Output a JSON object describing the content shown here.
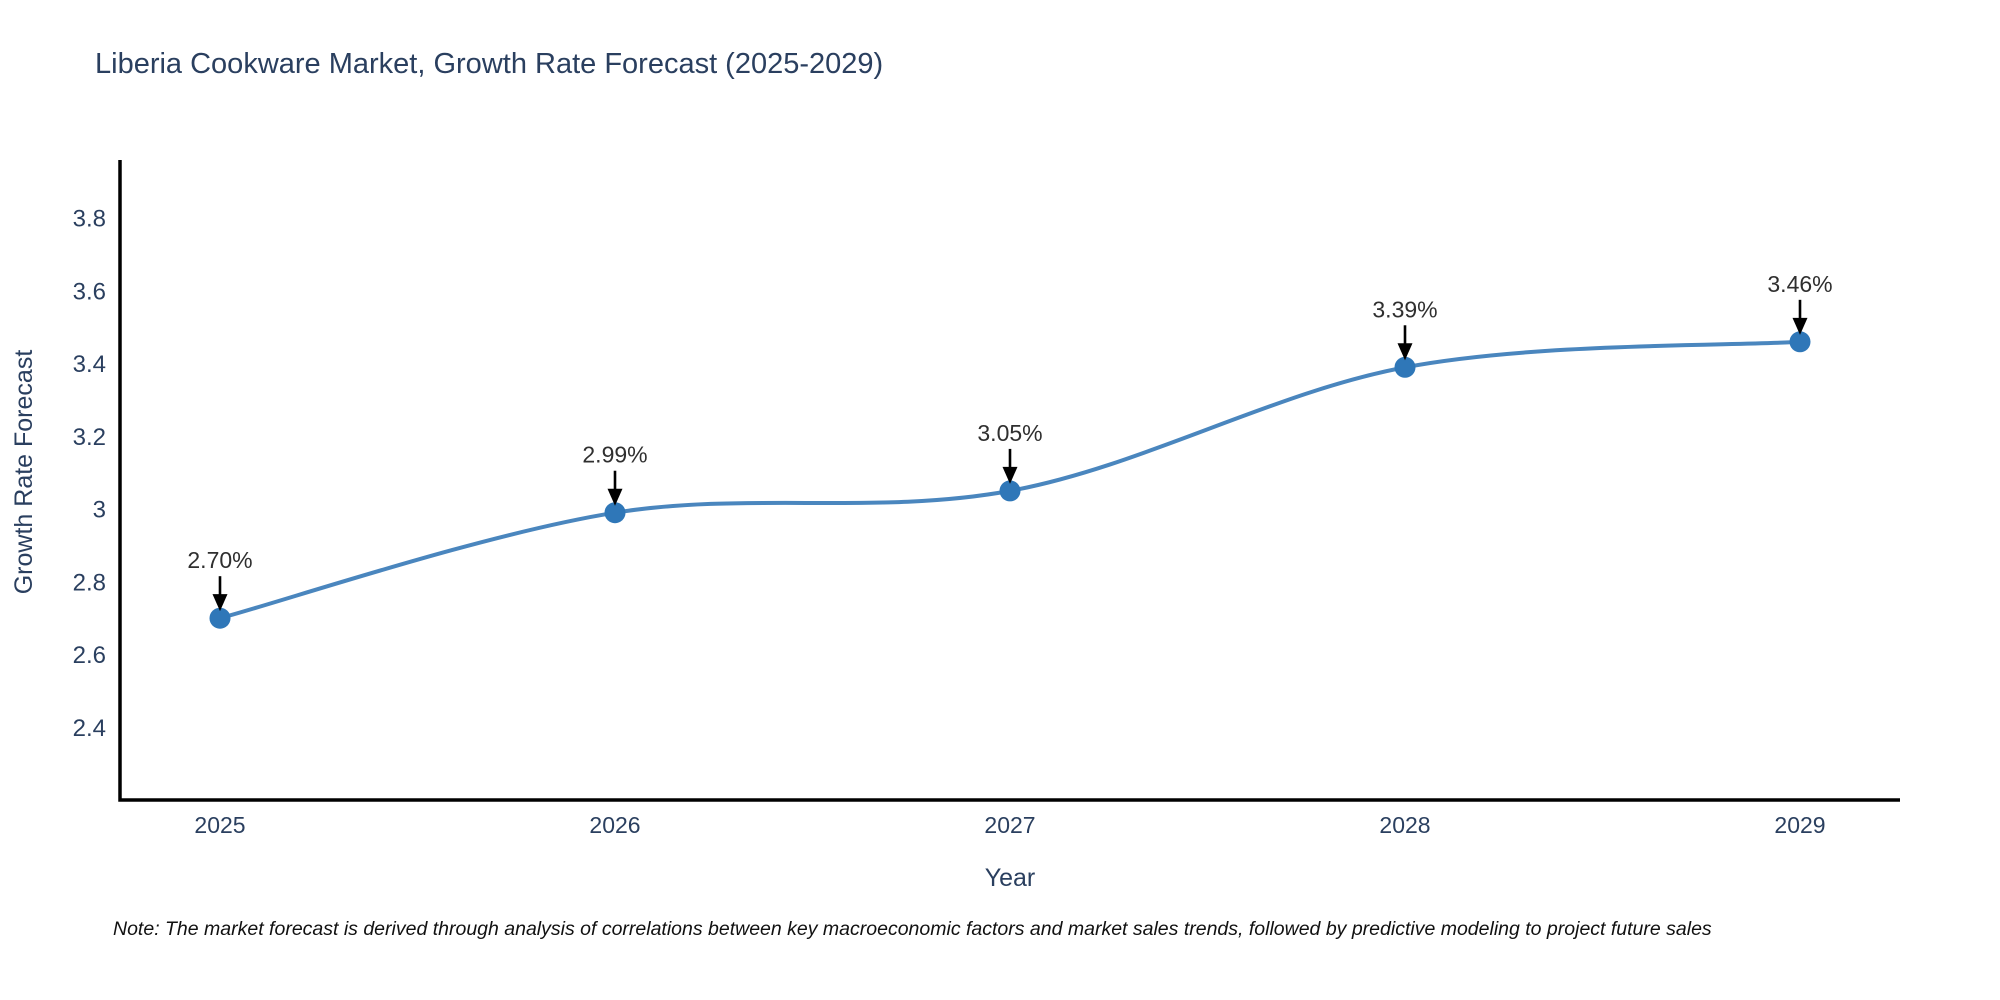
{
  "title": "Liberia Cookware Market, Growth Rate Forecast (2025-2029)",
  "note": "Note: The market forecast is derived through analysis of correlations between key macroeconomic factors and market sales trends, followed by predictive modeling to project future sales",
  "chart_data": {
    "type": "line",
    "title": "Liberia Cookware Market, Growth Rate Forecast (2025-2029)",
    "xlabel": "Year",
    "ylabel": "Growth Rate Forecast",
    "categories": [
      "2025",
      "2026",
      "2027",
      "2028",
      "2029"
    ],
    "series": [
      {
        "name": "Growth Rate Forecast",
        "values": [
          2.7,
          2.99,
          3.05,
          3.39,
          3.46
        ]
      }
    ],
    "point_labels": [
      "2.70%",
      "2.99%",
      "3.05%",
      "3.39%",
      "3.46%"
    ],
    "line_shape": "spline",
    "grid": false,
    "legend_position": "none",
    "ylim": [
      2.2,
      3.96
    ],
    "yticks": {
      "values": [
        3.8,
        3.6,
        3.4,
        3.2,
        3.0,
        2.8,
        2.6,
        2.4
      ],
      "labels": [
        "3.8",
        "3.6",
        "3.4",
        "3.2",
        "3",
        "2.8",
        "2.6",
        "2.4"
      ]
    },
    "colors": {
      "line": "#4a86be",
      "marker": "#2f77b8",
      "axis": "#000000",
      "tick_text": "#2a3f5f",
      "axis_title_text": "#2a3f5f",
      "annotation_text": "#2f2f2f",
      "annotation_arrow": "#000000",
      "title_text": "#2a3f5f",
      "background": "#ffffff"
    }
  }
}
